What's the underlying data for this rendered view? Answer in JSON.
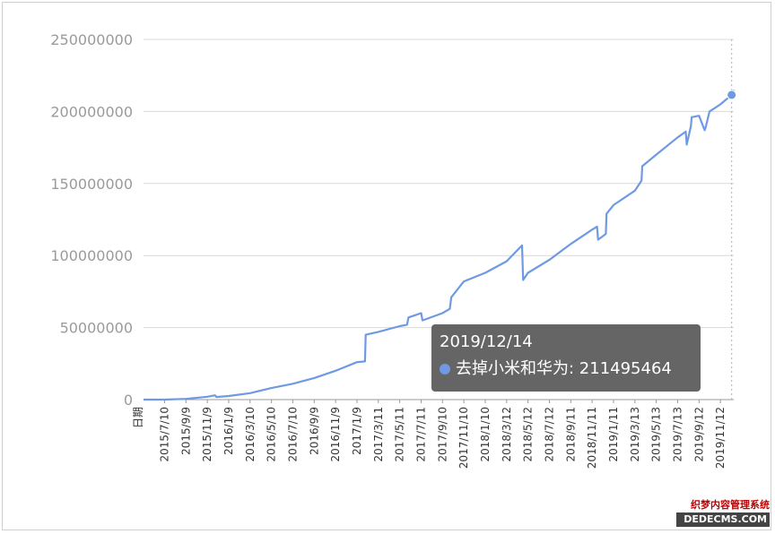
{
  "chart_data": {
    "type": "line",
    "xlabel": "日期",
    "ylabel": "",
    "ylim": [
      0,
      250000000
    ],
    "yticks": [
      "0",
      "50000000",
      "100000000",
      "150000000",
      "200000000",
      "250000000"
    ],
    "xticks": [
      "2015/7/10",
      "2015/9/9",
      "2015/11/9",
      "2016/1/9",
      "2016/3/10",
      "2016/5/10",
      "2016/7/10",
      "2016/9/9",
      "2016/11/9",
      "2017/1/9",
      "2017/3/11",
      "2017/5/11",
      "2017/7/11",
      "2017/9/10",
      "2017/11/10",
      "2018/1/10",
      "2018/3/12",
      "2018/5/12",
      "2018/7/12",
      "2018/9/11",
      "2018/11/11",
      "2019/1/11",
      "2019/3/13",
      "2019/5/13",
      "2019/7/13",
      "2019/9/12",
      "2019/11/12"
    ],
    "grid": true,
    "series": [
      {
        "name": "去掉小米和华为",
        "color": "#6f9ae3",
        "x": [
          "2015/5/11",
          "2015/7/10",
          "2015/9/9",
          "2015/11/9",
          "2015/12/1",
          "2015/12/5",
          "2016/1/9",
          "2016/3/10",
          "2016/5/10",
          "2016/7/10",
          "2016/9/9",
          "2016/11/9",
          "2017/1/9",
          "2017/2/1",
          "2017/2/3",
          "2017/3/11",
          "2017/5/11",
          "2017/6/1",
          "2017/6/5",
          "2017/7/11",
          "2017/7/15",
          "2017/9/10",
          "2017/10/1",
          "2017/10/5",
          "2017/11/10",
          "2018/1/10",
          "2018/3/12",
          "2018/4/25",
          "2018/4/28",
          "2018/5/12",
          "2018/7/12",
          "2018/9/11",
          "2018/11/11",
          "2018/11/25",
          "2018/11/28",
          "2018/12/20",
          "2018/12/22",
          "2019/1/11",
          "2019/3/13",
          "2019/4/1",
          "2019/4/3",
          "2019/5/13",
          "2019/7/13",
          "2019/8/5",
          "2019/8/8",
          "2019/8/20",
          "2019/8/22",
          "2019/9/12",
          "2019/9/28",
          "2019/10/1",
          "2019/10/12",
          "2019/11/12",
          "2019/12/14",
          "2019/12/20"
        ],
        "values": [
          0,
          0,
          500000,
          2000000,
          3000000,
          1800000,
          2500000,
          4500000,
          8000000,
          11000000,
          15000000,
          20000000,
          26000000,
          26500000,
          45000000,
          47000000,
          51000000,
          52000000,
          57000000,
          60000000,
          55000000,
          60000000,
          63000000,
          71000000,
          82000000,
          88000000,
          96000000,
          107000000,
          83000000,
          88000000,
          97000000,
          108000000,
          118000000,
          120000000,
          111000000,
          115000000,
          129000000,
          135000000,
          145000000,
          152000000,
          162000000,
          170000000,
          182000000,
          186000000,
          177000000,
          190000000,
          196000000,
          197000000,
          187000000,
          189000000,
          200000000,
          205000000,
          211495464,
          215000000
        ]
      }
    ],
    "hover": {
      "date": "2019/12/14",
      "series": "去掉小米和华为",
      "value": "211495464"
    }
  },
  "watermark": {
    "line1": "织梦内容管理系统",
    "line2": "DEDECMS.COM"
  }
}
